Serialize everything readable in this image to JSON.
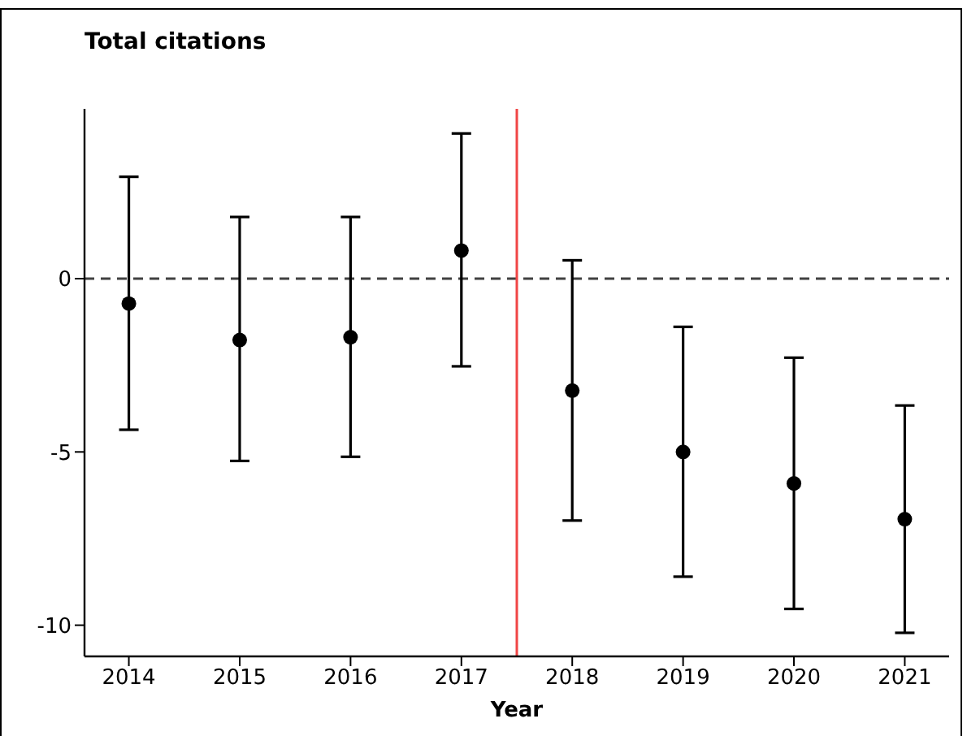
{
  "chart_data": {
    "type": "scatter",
    "title": "Total citations",
    "xlabel": "Year",
    "x": [
      2014,
      2015,
      2016,
      2017,
      2018,
      2019,
      2020,
      2021
    ],
    "series": [
      {
        "color": "#000000",
        "values": [
          -0.72,
          -1.77,
          -1.69,
          0.81,
          -3.23,
          -5.0,
          -5.91,
          -6.94
        ],
        "errors": [
          [
            -4.36,
            2.94
          ],
          [
            -5.26,
            1.78
          ],
          [
            -5.14,
            1.78
          ],
          [
            -2.53,
            4.19
          ],
          [
            -6.98,
            0.53
          ],
          [
            -8.6,
            -1.39
          ],
          [
            -9.53,
            -2.28
          ],
          [
            -10.22,
            -3.66
          ]
        ]
      }
    ],
    "xlim": [
      2013.6,
      2021.4
    ],
    "xticks": [
      2014,
      2015,
      2016,
      2017,
      2018,
      2019,
      2020,
      2021
    ],
    "ylim": [
      -10.9,
      4.9
    ],
    "yticks": [
      -10,
      -5,
      0
    ],
    "ref_lines": [
      {
        "axis": "y",
        "value": 0,
        "color": "#404040",
        "line_style": "dashed"
      },
      {
        "axis": "x",
        "value": 2017.5,
        "color": "#f04545",
        "line_style": "solid"
      }
    ],
    "grid": false,
    "legend": false,
    "marker": "circle"
  }
}
